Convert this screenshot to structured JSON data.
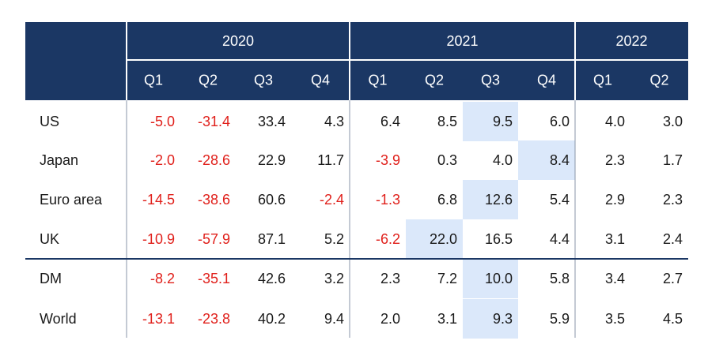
{
  "colors": {
    "header_bg": "#1b3764",
    "header_text": "#ffffff",
    "negative": "#e0201b",
    "positive": "#1a1a1a",
    "highlight": "#dbe8fa",
    "divider": "#1b3764"
  },
  "chart_data": {
    "type": "table",
    "years": [
      {
        "label": "2020",
        "span": 4
      },
      {
        "label": "2021",
        "span": 4
      },
      {
        "label": "2022",
        "span": 2
      }
    ],
    "quarters": [
      "Q1",
      "Q2",
      "Q3",
      "Q4",
      "Q1",
      "Q2",
      "Q3",
      "Q4",
      "Q1",
      "Q2"
    ],
    "rows": [
      {
        "label": "US",
        "values": [
          "-5.0",
          "-31.4",
          "33.4",
          "4.3",
          "6.4",
          "8.5",
          "9.5",
          "6.0",
          "4.0",
          "3.0"
        ],
        "highlight": [
          6
        ]
      },
      {
        "label": "Japan",
        "values": [
          "-2.0",
          "-28.6",
          "22.9",
          "11.7",
          "-3.9",
          "0.3",
          "4.0",
          "8.4",
          "2.3",
          "1.7"
        ],
        "highlight": [
          7
        ]
      },
      {
        "label": "Euro area",
        "values": [
          "-14.5",
          "-38.6",
          "60.6",
          "-2.4",
          "-1.3",
          "6.8",
          "12.6",
          "5.4",
          "2.9",
          "2.3"
        ],
        "highlight": [
          6
        ]
      },
      {
        "label": "UK",
        "values": [
          "-10.9",
          "-57.9",
          "87.1",
          "5.2",
          "-6.2",
          "22.0",
          "16.5",
          "4.4",
          "3.1",
          "2.4"
        ],
        "highlight": [
          5
        ]
      },
      {
        "label": "DM",
        "values": [
          "-8.2",
          "-35.1",
          "42.6",
          "3.2",
          "2.3",
          "7.2",
          "10.0",
          "5.8",
          "3.4",
          "2.7"
        ],
        "highlight": [
          6
        ]
      },
      {
        "label": "World",
        "values": [
          "-13.1",
          "-23.8",
          "40.2",
          "9.4",
          "2.0",
          "3.1",
          "9.3",
          "5.9",
          "3.5",
          "4.5"
        ],
        "highlight": [
          6
        ]
      }
    ],
    "group_break_after_row": 3
  }
}
